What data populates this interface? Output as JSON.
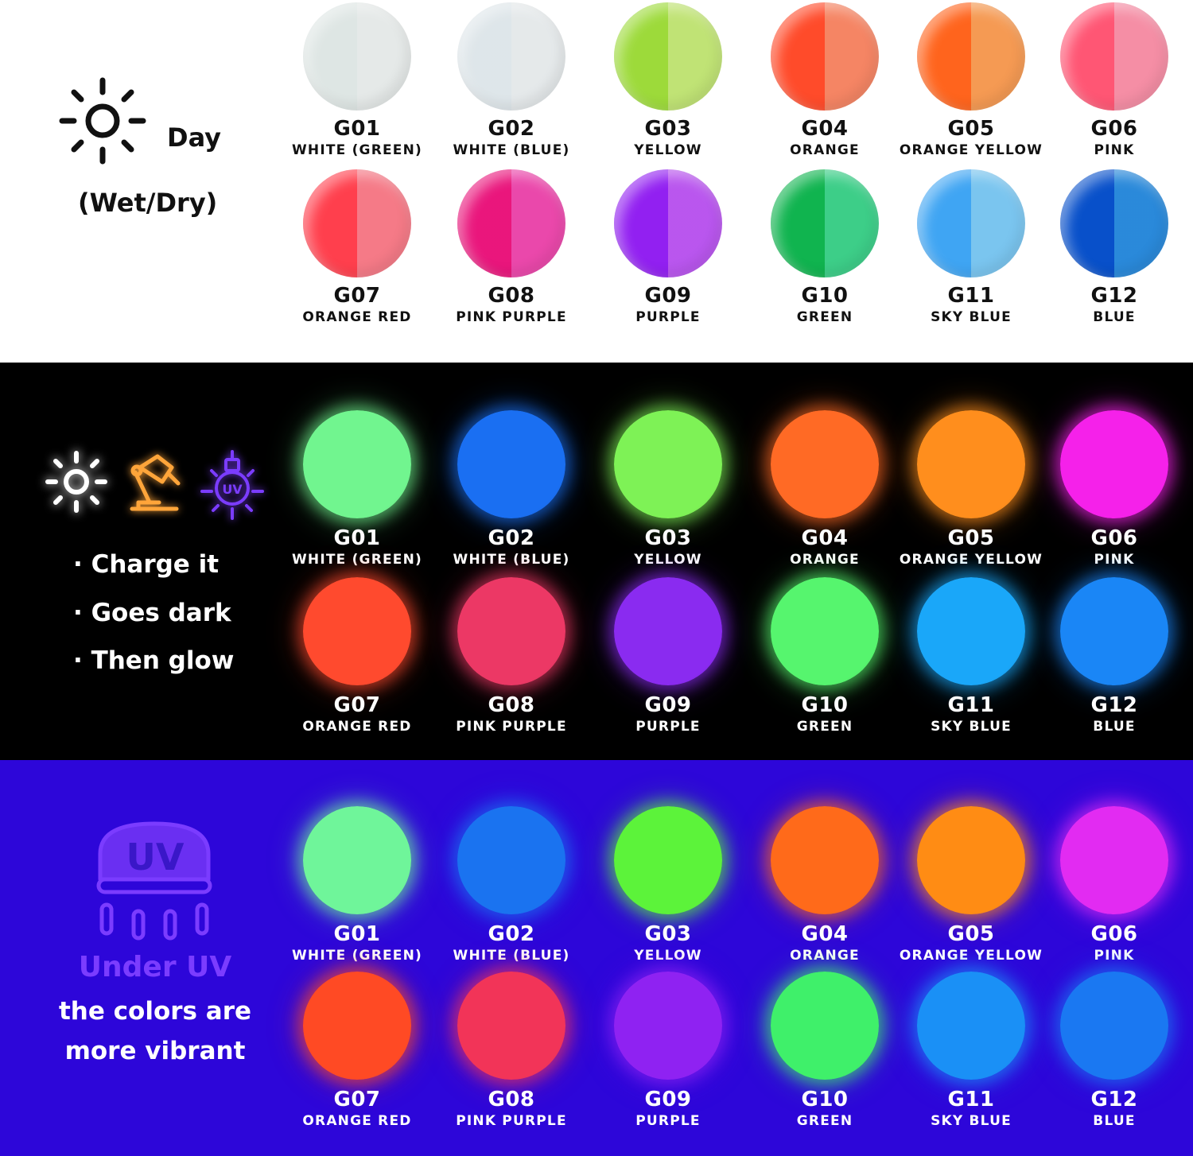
{
  "day_section": {
    "title": "Day",
    "subtitle": "(Wet/Dry)",
    "icon": "sun-icon",
    "swatches": [
      {
        "code": "G01",
        "name": "WHITE  (GREEN)",
        "color": "#eef2f1"
      },
      {
        "code": "G02",
        "name": "WHITE  (BLUE)",
        "color": "#eef2f4"
      },
      {
        "code": "G03",
        "name": "YELLOW",
        "color": "#c8ec7a"
      },
      {
        "code": "G04",
        "name": "ORANGE",
        "color": "#ff8a68"
      },
      {
        "code": "G05",
        "name": "ORANGE YELLOW",
        "color": "#ffa056"
      },
      {
        "code": "G06",
        "name": "PINK",
        "color": "#ff94ac"
      },
      {
        "code": "G07",
        "name": "ORANGE RED",
        "color": "#ff7f8c"
      },
      {
        "code": "G08",
        "name": "PINK PURPLE",
        "color": "#f44bb2"
      },
      {
        "code": "G09",
        "name": "PURPLE",
        "color": "#c15af8"
      },
      {
        "code": "G10",
        "name": "GREEN",
        "color": "#3fd68e"
      },
      {
        "code": "G11",
        "name": "SKY BLUE",
        "color": "#7fcdf9"
      },
      {
        "code": "G12",
        "name": "BLUE",
        "color": "#2c8fe3"
      }
    ]
  },
  "dark_section": {
    "icons": [
      "sun-icon",
      "lamp-icon",
      "uv-bulb-icon"
    ],
    "icon_colors": {
      "sun": "#ffffff",
      "lamp": "#ffa53a",
      "uv": "#7b3cff"
    },
    "bullets": [
      "Charge it",
      "Goes dark",
      "Then glow"
    ],
    "swatches": [
      {
        "code": "G01",
        "name": "WHITE  (GREEN)",
        "color": "#71f58f"
      },
      {
        "code": "G02",
        "name": "WHITE  (BLUE)",
        "color": "#1a6ff2"
      },
      {
        "code": "G03",
        "name": "YELLOW",
        "color": "#7ef256"
      },
      {
        "code": "G04",
        "name": "ORANGE",
        "color": "#ff6a25"
      },
      {
        "code": "G05",
        "name": "ORANGE YELLOW",
        "color": "#ff8e1d"
      },
      {
        "code": "G06",
        "name": "PINK",
        "color": "#f521ea"
      },
      {
        "code": "G07",
        "name": "ORANGE RED",
        "color": "#ff4a2e"
      },
      {
        "code": "G08",
        "name": "PINK PURPLE",
        "color": "#ec3865"
      },
      {
        "code": "G09",
        "name": "PURPLE",
        "color": "#8a2bf0"
      },
      {
        "code": "G10",
        "name": "GREEN",
        "color": "#56f56e"
      },
      {
        "code": "G11",
        "name": "SKY BLUE",
        "color": "#1aa7f9"
      },
      {
        "code": "G12",
        "name": "BLUE",
        "color": "#1a86f6"
      }
    ]
  },
  "uv_section": {
    "icon": "uv-lamp-icon",
    "icon_label": "UV",
    "heading": "Under UV",
    "text_line1": "the colors are",
    "text_line2": "more vibrant",
    "swatches": [
      {
        "code": "G01",
        "name": "WHITE  (GREEN)",
        "color": "#6ff59a"
      },
      {
        "code": "G02",
        "name": "WHITE  (BLUE)",
        "color": "#1a73f0"
      },
      {
        "code": "G03",
        "name": "YELLOW",
        "color": "#5cf33a"
      },
      {
        "code": "G04",
        "name": "ORANGE",
        "color": "#ff6a1a"
      },
      {
        "code": "G05",
        "name": "ORANGE YELLOW",
        "color": "#ff8c14"
      },
      {
        "code": "G06",
        "name": "PINK",
        "color": "#e22bf2"
      },
      {
        "code": "G07",
        "name": "ORANGE RED",
        "color": "#ff4a24"
      },
      {
        "code": "G08",
        "name": "PINK PURPLE",
        "color": "#f23458"
      },
      {
        "code": "G09",
        "name": "PURPLE",
        "color": "#8f22f2"
      },
      {
        "code": "G10",
        "name": "GREEN",
        "color": "#3ff06a"
      },
      {
        "code": "G11",
        "name": "SKY BLUE",
        "color": "#1a90f6"
      },
      {
        "code": "G12",
        "name": "BLUE",
        "color": "#1a78f2"
      }
    ]
  }
}
